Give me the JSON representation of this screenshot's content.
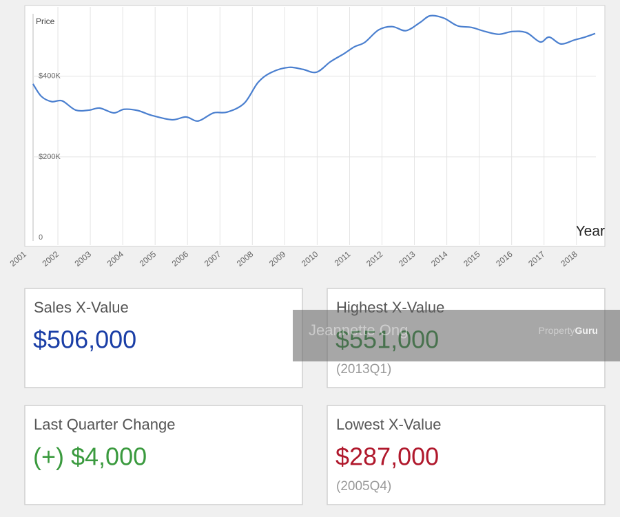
{
  "chart_data": {
    "type": "line",
    "y_label": "Price",
    "x_label": "Year",
    "x": [
      2001.23,
      2001.49,
      2001.81,
      2002.13,
      2002.55,
      2002.97,
      2003.29,
      2003.72,
      2004.04,
      2004.46,
      2004.89,
      2005.52,
      2005.95,
      2006.33,
      2006.8,
      2007.22,
      2007.75,
      2008.18,
      2008.6,
      2009.13,
      2009.56,
      2009.98,
      2010.41,
      2010.83,
      2011.15,
      2011.47,
      2011.9,
      2012.32,
      2012.74,
      2013.17,
      2013.49,
      2013.91,
      2014.33,
      2014.76,
      2015.18,
      2015.61,
      2016.03,
      2016.46,
      2016.88,
      2017.16,
      2017.52,
      2017.94,
      2018.26,
      2018.58
    ],
    "series": [
      {
        "color": "#4a7fcf",
        "values": [
          381000,
          350000,
          337000,
          339000,
          316000,
          316000,
          321000,
          309000,
          318000,
          315000,
          303000,
          292000,
          299000,
          289000,
          309000,
          311000,
          333000,
          385000,
          410000,
          422000,
          417000,
          410000,
          436000,
          456000,
          473000,
          484000,
          515000,
          523000,
          513000,
          533000,
          550000,
          544000,
          525000,
          521000,
          511000,
          504000,
          511000,
          508000,
          485000,
          497000,
          480000,
          490000,
          497000,
          506000
        ]
      }
    ],
    "xlim": [
      2001,
      2018.6
    ],
    "xticks": [
      2001,
      2002,
      2003,
      2004,
      2005,
      2006,
      2007,
      2008,
      2009,
      2010,
      2011,
      2012,
      2013,
      2014,
      2015,
      2016,
      2017,
      2018
    ],
    "ylim": [
      0,
      560000
    ],
    "yticks": [
      0,
      {
        "value": 200000,
        "label": "$200K"
      },
      {
        "value": 400000,
        "label": "$400K"
      }
    ],
    "grid": true
  },
  "cards": [
    {
      "title": "Sales X-Value",
      "value": "$506,000",
      "color": "#1a3ea6"
    },
    {
      "title": "Highest X-Value",
      "value": "$551,000",
      "note": "(2013Q1)",
      "color": "#2e8b3a"
    },
    {
      "title": "Last Quarter Change",
      "value": "(+) $4,000",
      "color": "#3a9a3e"
    },
    {
      "title": "Lowest X-Value",
      "value": "$287,000",
      "note": "(2005Q4)",
      "color": "#b0182c"
    }
  ],
  "watermark": {
    "name": "Jeannette Ong",
    "brand_a": "Property",
    "brand_b": "Guru"
  }
}
